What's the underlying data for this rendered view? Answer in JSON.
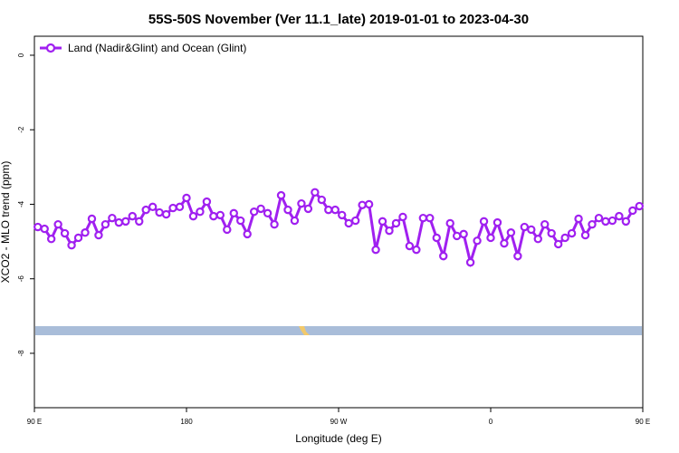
{
  "chart_data": {
    "type": "line",
    "title": "55S-50S November (Ver 11.1_late)   2019-01-01 to 2023-04-30",
    "x_label": "Longitude (deg E)",
    "y_label": "XCO2 - MLO trend (ppm)",
    "x": [
      92,
      96,
      100,
      104,
      108,
      112,
      116,
      120,
      124,
      128,
      132,
      136,
      140,
      144,
      148,
      152,
      156,
      160,
      164,
      168,
      172,
      176,
      180,
      184,
      188,
      192,
      196,
      200,
      204,
      208,
      212,
      216,
      220,
      224,
      228,
      232,
      236,
      240,
      244,
      248,
      252,
      256,
      260,
      264,
      268,
      272,
      276,
      280,
      284,
      288,
      292,
      296,
      300,
      304,
      308,
      312,
      316,
      320,
      324,
      328,
      332,
      336,
      340,
      344,
      348,
      352,
      356,
      360,
      364,
      368,
      372,
      376,
      380,
      384,
      388,
      392,
      396,
      400,
      404,
      408,
      412,
      416,
      420,
      424,
      428,
      432,
      436,
      440,
      444,
      448
    ],
    "series": [
      {
        "name": "Land (Nadir&Glint) and Ocean (Glint)",
        "color": "#a020f0",
        "values": [
          -4.61,
          -4.66,
          -4.93,
          -4.54,
          -4.78,
          -5.1,
          -4.9,
          -4.76,
          -4.39,
          -4.83,
          -4.54,
          -4.37,
          -4.49,
          -4.46,
          -4.32,
          -4.46,
          -4.15,
          -4.07,
          -4.22,
          -4.27,
          -4.1,
          -4.07,
          -3.83,
          -4.32,
          -4.2,
          -3.93,
          -4.32,
          -4.29,
          -4.68,
          -4.24,
          -4.44,
          -4.8,
          -4.2,
          -4.12,
          -4.24,
          -4.54,
          -3.76,
          -4.15,
          -4.44,
          -3.98,
          -4.12,
          -3.68,
          -3.88,
          -4.15,
          -4.15,
          -4.29,
          -4.51,
          -4.44,
          -4.02,
          -4.0,
          -5.22,
          -4.46,
          -4.71,
          -4.51,
          -4.34,
          -5.12,
          -5.22,
          -4.37,
          -4.37,
          -4.9,
          -5.39,
          -4.51,
          -4.85,
          -4.8,
          -5.56,
          -4.98,
          -4.46,
          -4.9,
          -4.49,
          -5.05,
          -4.76,
          -5.39,
          -4.61,
          -4.68,
          -4.93,
          -4.54,
          -4.78,
          -5.07,
          -4.9,
          -4.78,
          -4.39,
          -4.83,
          -4.54,
          -4.37,
          -4.46,
          -4.44,
          -4.32,
          -4.46,
          -4.17,
          -4.05
        ]
      }
    ],
    "xlim": [
      90,
      450
    ],
    "xticks": [
      {
        "value": 90,
        "label": "90 E"
      },
      {
        "value": 180,
        "label": "180"
      },
      {
        "value": 270,
        "label": "90 W"
      },
      {
        "value": 360,
        "label": "0"
      },
      {
        "value": 450,
        "label": "90 E"
      }
    ],
    "ylim": [
      -9.46,
      0.51
    ],
    "yticks": [
      0,
      -2,
      -4,
      -6,
      -8
    ],
    "legend": "top-left"
  }
}
